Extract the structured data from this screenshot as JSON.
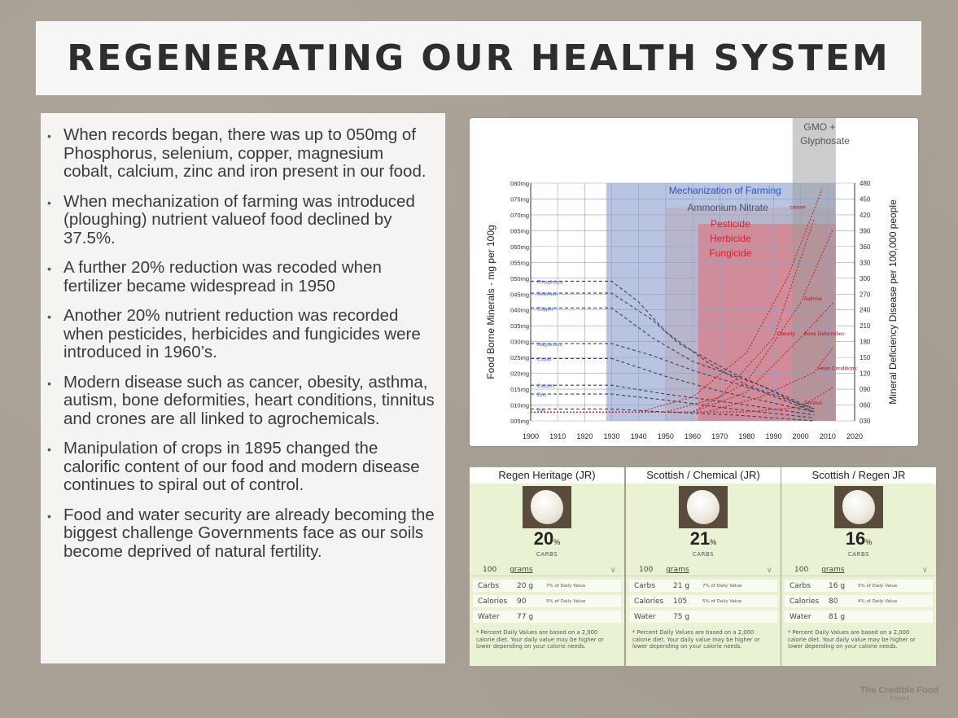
{
  "title": "REGENERATING OUR HEALTH SYSTEM",
  "bullets": [
    "When records began, there was up to 050mg of Phosphorus, selenium, copper, magnesium cobalt, calcium, zinc and iron present in our food.",
    "When mechanization of farming was introduced (ploughing) nutrient valueof food declined by 37.5%.",
    "A further 20% reduction was recoded when fertilizer became widespread in 1950",
    "Another 20% nutrient  reduction was recorded when pesticides, herbicides and fungicides were introduced in 1960’s.",
    "Modern disease such as cancer, obesity, asthma, autism, bone deformities, heart conditions, tinnitus and crones are all linked to agrochemicals.",
    "Manipulation of crops in 1895 changed the calorific content of our food and modern disease continues to spiral out of control.",
    "Food and water security are already becoming the biggest challenge Governments face as our soils become deprived of natural fertility."
  ],
  "chart_data": {
    "type": "line",
    "ylabel_left": "Food Borne Minerals - mg per 100g",
    "ylabel_right": "Mineral Deficiency Disease per 100,000 people",
    "x_ticks": [
      "1900",
      "1910",
      "1920",
      "1930",
      "1940",
      "1950",
      "1960",
      "1970",
      "1980",
      "1990",
      "2000",
      "2010",
      "2020"
    ],
    "y_left_ticks": [
      "080mg",
      "075mg",
      "070mg",
      "065mg",
      "060mg",
      "055mg",
      "050mg",
      "045mg",
      "040mg",
      "035mg",
      "030mg",
      "025mg",
      "020mg",
      "015mg",
      "010mg",
      "005mg"
    ],
    "y_right_ticks": [
      "480",
      "450",
      "420",
      "390",
      "360",
      "330",
      "300",
      "270",
      "240",
      "210",
      "180",
      "150",
      "120",
      "090",
      "060",
      "030"
    ],
    "era_labels": {
      "mechanization": "Mechanization of Farming",
      "ammonium": "Ammonium Nitrate",
      "pesticide": "Pesticide",
      "herbicide": "Herbicide",
      "fungicide": "Fungicide",
      "gmo": "GMO +",
      "glyphosate": "Glyphosate"
    },
    "mineral_series": [
      {
        "name": "Phosphorus",
        "x": [
          1900,
          1930,
          1940,
          1950,
          1965,
          1980,
          2005
        ],
        "y": [
          49,
          49,
          42,
          32,
          22,
          14,
          6
        ]
      },
      {
        "name": "Selenium",
        "x": [
          1900,
          1930,
          1945,
          1955,
          1975,
          2005
        ],
        "y": [
          45,
          45,
          36,
          28,
          18,
          6
        ]
      },
      {
        "name": "Copper",
        "x": [
          1900,
          1930,
          1945,
          1960,
          1985,
          2005
        ],
        "y": [
          40,
          40,
          30,
          22,
          14,
          5
        ]
      },
      {
        "name": "Magnesium",
        "x": [
          1900,
          1930,
          1945,
          1960,
          1985,
          2005
        ],
        "y": [
          28,
          28,
          24,
          19,
          12,
          5
        ]
      },
      {
        "name": "Cobalt",
        "x": [
          1900,
          1930,
          1950,
          1970,
          2005
        ],
        "y": [
          23,
          23,
          17,
          12,
          5
        ]
      },
      {
        "name": "Calcium",
        "x": [
          1900,
          1930,
          1950,
          1975,
          2005
        ],
        "y": [
          14,
          14,
          11,
          8,
          4
        ]
      },
      {
        "name": "Zinc",
        "x": [
          1900,
          1930,
          1950,
          1975,
          2005
        ],
        "y": [
          11,
          11,
          9,
          6,
          3
        ]
      },
      {
        "name": "Iron",
        "x": [
          1900,
          1930,
          1950,
          1975,
          2005
        ],
        "y": [
          6,
          6,
          5,
          4,
          2
        ]
      }
    ],
    "disease_series": [
      {
        "name": "cancer",
        "x": [
          1900,
          1940,
          1960,
          1980,
          1995,
          2008
        ],
        "y": [
          30,
          30,
          60,
          150,
          300,
          480
        ]
      },
      {
        "name": "Obesity",
        "x": [
          1900,
          1950,
          1970,
          1990,
          2005
        ],
        "y": [
          30,
          30,
          60,
          180,
          420
        ]
      },
      {
        "name": "Asthma",
        "x": [
          1900,
          1960,
          1980,
          2000,
          2012
        ],
        "y": [
          30,
          30,
          90,
          250,
          400
        ]
      },
      {
        "name": "Bone Deformities",
        "x": [
          1900,
          1960,
          1980,
          2000,
          2012
        ],
        "y": [
          30,
          30,
          70,
          180,
          250
        ]
      },
      {
        "name": "Heart Conditions",
        "x": [
          1900,
          1965,
          1985,
          2005,
          2012
        ],
        "y": [
          30,
          30,
          60,
          110,
          160
        ]
      },
      {
        "name": "Tinnitus",
        "x": [
          1900,
          1980,
          2000,
          2012
        ],
        "y": [
          30,
          30,
          40,
          80
        ]
      }
    ]
  },
  "cards": [
    {
      "name": "Regen Heritage (JR)",
      "pct": "20",
      "pct_unit": "%",
      "carbs_label": "CARBS",
      "portion": "100",
      "unit": "grams",
      "rows": [
        {
          "label": "Carbs",
          "value": "20 g",
          "dv": "7% of Daily Value"
        },
        {
          "label": "Calories",
          "value": "90",
          "dv": "5% of Daily Value"
        },
        {
          "label": "Water",
          "value": "77 g",
          "dv": ""
        }
      ],
      "footnote": "* Percent Daily Values are based on a 2,000 calorie diet. Your daily value may be higher or lower depending on your calorie needs."
    },
    {
      "name": "Scottish / Chemical (JR)",
      "pct": "21",
      "pct_unit": "%",
      "carbs_label": "CARBS",
      "portion": "100",
      "unit": "grams",
      "rows": [
        {
          "label": "Carbs",
          "value": "21 g",
          "dv": "7% of Daily Value"
        },
        {
          "label": "Calories",
          "value": "105",
          "dv": "5% of Daily Value"
        },
        {
          "label": "Water",
          "value": "75 g",
          "dv": ""
        }
      ],
      "footnote": "* Percent Daily Values are based on a 2,000 calorie diet. Your daily value may be higher or lower depending on your calorie needs."
    },
    {
      "name": "Scottish / Regen JR",
      "pct": "16",
      "pct_unit": "%",
      "carbs_label": "CARBS",
      "portion": "100",
      "unit": "grams",
      "rows": [
        {
          "label": "Carbs",
          "value": "16 g",
          "dv": "5% of Daily Value"
        },
        {
          "label": "Calories",
          "value": "80",
          "dv": "4% of Daily Value"
        },
        {
          "label": "Water",
          "value": "81 g",
          "dv": ""
        }
      ],
      "footnote": "* Percent Daily Values are based on a 2,000 calorie diet. Your daily value may be higher or lower depending on your calorie needs."
    }
  ],
  "watermark": {
    "line1": "The Credible Food",
    "line2": "Project"
  }
}
